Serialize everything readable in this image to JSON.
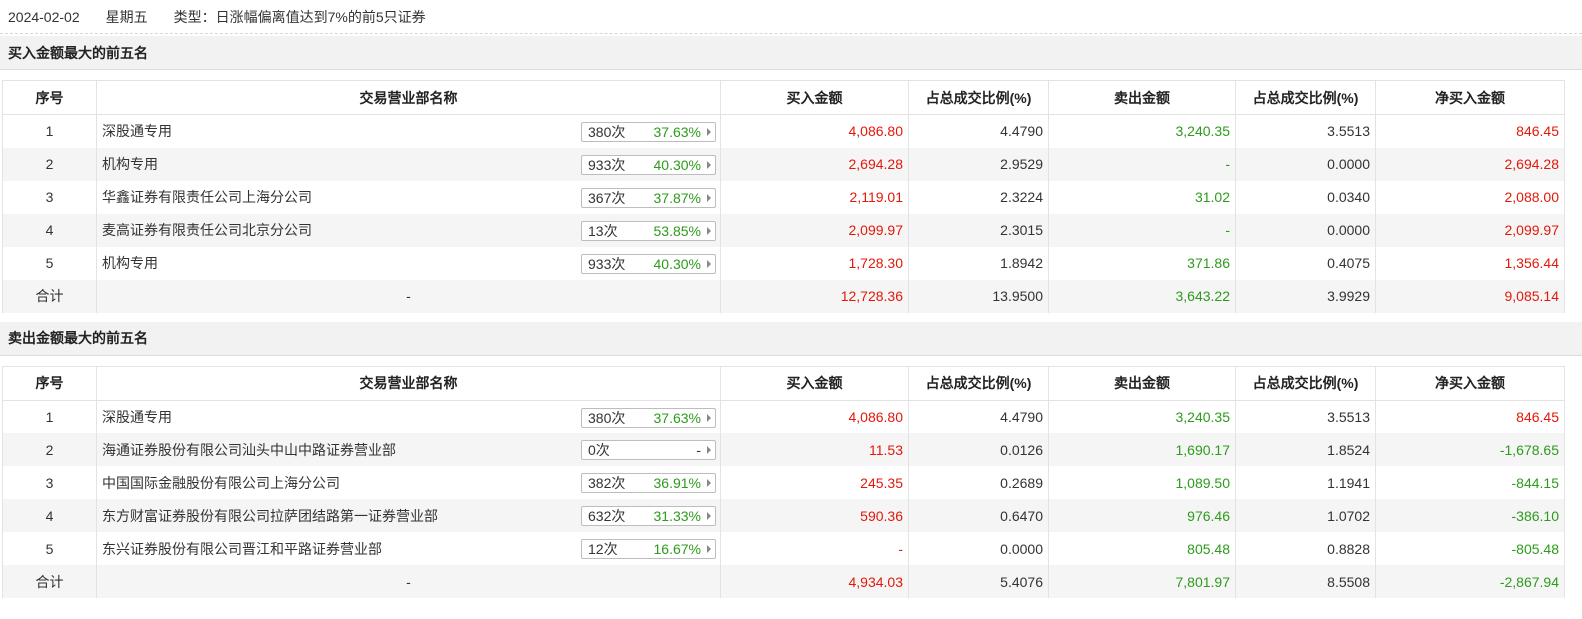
{
  "header": {
    "date": "2024-02-02",
    "weekday": "星期五",
    "type_text": "类型：日涨幅偏离值达到7%的前5只证券"
  },
  "columns": [
    "序号",
    "交易营业部名称",
    "买入金额",
    "占总成交比例(%)",
    "卖出金额",
    "占总成交比例(%)",
    "净买入金额"
  ],
  "colors": {
    "positive": "#e4180a",
    "negative": "#2d9b1c"
  },
  "sections": [
    {
      "title": "买入金额最大的前五名",
      "rows": [
        {
          "no": "1",
          "name": "深股通专用",
          "times": "380次",
          "pct": "37.63%",
          "buy": "4,086.80",
          "buy_ratio": "4.4790",
          "sell": "3,240.35",
          "sell_ratio": "3.5513",
          "net": "846.45"
        },
        {
          "no": "2",
          "name": "机构专用",
          "times": "933次",
          "pct": "40.30%",
          "buy": "2,694.28",
          "buy_ratio": "2.9529",
          "sell": "-",
          "sell_ratio": "0.0000",
          "net": "2,694.28"
        },
        {
          "no": "3",
          "name": "华鑫证券有限责任公司上海分公司",
          "times": "367次",
          "pct": "37.87%",
          "buy": "2,119.01",
          "buy_ratio": "2.3224",
          "sell": "31.02",
          "sell_ratio": "0.0340",
          "net": "2,088.00"
        },
        {
          "no": "4",
          "name": "麦高证券有限责任公司北京分公司",
          "times": "13次",
          "pct": "53.85%",
          "buy": "2,099.97",
          "buy_ratio": "2.3015",
          "sell": "-",
          "sell_ratio": "0.0000",
          "net": "2,099.97"
        },
        {
          "no": "5",
          "name": "机构专用",
          "times": "933次",
          "pct": "40.30%",
          "buy": "1,728.30",
          "buy_ratio": "1.8942",
          "sell": "371.86",
          "sell_ratio": "0.4075",
          "net": "1,356.44"
        }
      ],
      "total": {
        "label": "合计",
        "name": "-",
        "buy": "12,728.36",
        "buy_ratio": "13.9500",
        "sell": "3,643.22",
        "sell_ratio": "3.9929",
        "net": "9,085.14"
      }
    },
    {
      "title": "卖出金额最大的前五名",
      "rows": [
        {
          "no": "1",
          "name": "深股通专用",
          "times": "380次",
          "pct": "37.63%",
          "buy": "4,086.80",
          "buy_ratio": "4.4790",
          "sell": "3,240.35",
          "sell_ratio": "3.5513",
          "net": "846.45"
        },
        {
          "no": "2",
          "name": "海通证券股份有限公司汕头中山中路证券营业部",
          "times": "0次",
          "pct": "-",
          "buy": "11.53",
          "buy_ratio": "0.0126",
          "sell": "1,690.17",
          "sell_ratio": "1.8524",
          "net": "-1,678.65"
        },
        {
          "no": "3",
          "name": "中国国际金融股份有限公司上海分公司",
          "times": "382次",
          "pct": "36.91%",
          "buy": "245.35",
          "buy_ratio": "0.2689",
          "sell": "1,089.50",
          "sell_ratio": "1.1941",
          "net": "-844.15"
        },
        {
          "no": "4",
          "name": "东方财富证券股份有限公司拉萨团结路第一证券营业部",
          "times": "632次",
          "pct": "31.33%",
          "buy": "590.36",
          "buy_ratio": "0.6470",
          "sell": "976.46",
          "sell_ratio": "1.0702",
          "net": "-386.10"
        },
        {
          "no": "5",
          "name": "东兴证券股份有限公司晋江和平路证券营业部",
          "times": "12次",
          "pct": "16.67%",
          "buy": "-",
          "buy_ratio": "0.0000",
          "sell": "805.48",
          "sell_ratio": "0.8828",
          "net": "-805.48"
        }
      ],
      "total": {
        "label": "合计",
        "name": "-",
        "buy": "4,934.03",
        "buy_ratio": "5.4076",
        "sell": "7,801.97",
        "sell_ratio": "8.5508",
        "net": "-2,867.94"
      }
    }
  ]
}
